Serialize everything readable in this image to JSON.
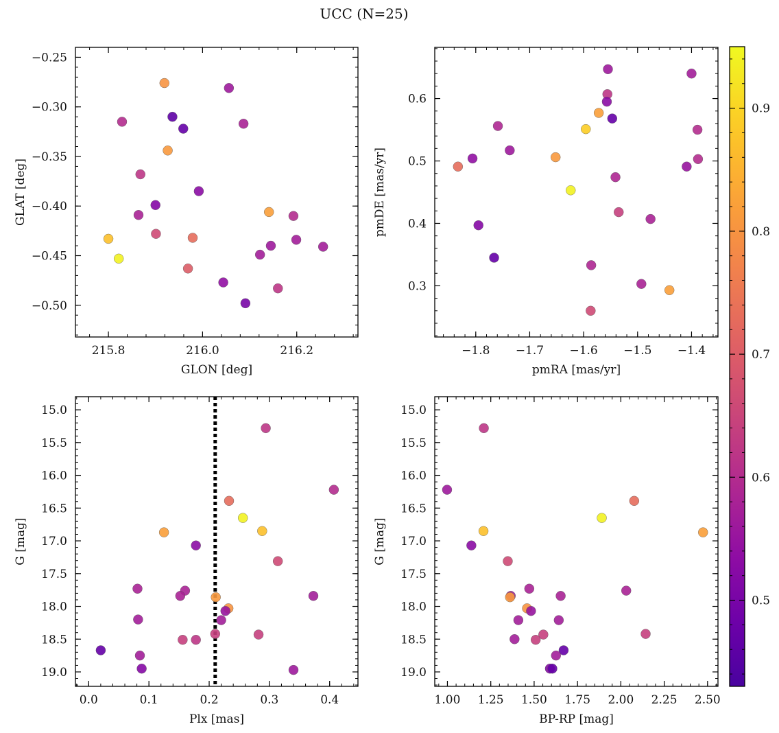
{
  "figure": {
    "title": "UCC (N=25)"
  },
  "colorbar": {
    "colormap": "plasma",
    "range": [
      0.43,
      0.95
    ],
    "ticks": [
      0.5,
      0.6,
      0.7,
      0.8,
      0.9
    ],
    "tick_labels": [
      "0.5",
      "0.6",
      "0.7",
      "0.8",
      "0.9"
    ]
  },
  "chart_data": [
    {
      "type": "scatter",
      "xlabel": "GLON [deg]",
      "ylabel": "GLAT [deg]",
      "xlim": [
        215.73,
        216.33
      ],
      "ylim": [
        -0.532,
        -0.24
      ],
      "y_inverted": false,
      "xticks": [
        215.8,
        216.0,
        216.2
      ],
      "xtick_labels": [
        "215.8",
        "216.0",
        "216.2"
      ],
      "xminor_step": 0.04,
      "yticks": [
        -0.5,
        -0.45,
        -0.4,
        -0.35,
        -0.3,
        -0.25
      ],
      "ytick_labels": [
        "−0.50",
        "−0.45",
        "−0.40",
        "−0.35",
        "−0.30",
        "−0.25"
      ],
      "yminor_step": 0.01,
      "points": [
        {
          "x": 215.919,
          "y": -0.276,
          "c": 0.8
        },
        {
          "x": 216.056,
          "y": -0.281,
          "c": 0.56
        },
        {
          "x": 215.936,
          "y": -0.31,
          "c": 0.46
        },
        {
          "x": 215.829,
          "y": -0.315,
          "c": 0.6
        },
        {
          "x": 215.959,
          "y": -0.322,
          "c": 0.47
        },
        {
          "x": 216.087,
          "y": -0.317,
          "c": 0.58
        },
        {
          "x": 215.926,
          "y": -0.344,
          "c": 0.81
        },
        {
          "x": 215.868,
          "y": -0.368,
          "c": 0.62
        },
        {
          "x": 215.992,
          "y": -0.385,
          "c": 0.53
        },
        {
          "x": 215.9,
          "y": -0.399,
          "c": 0.52
        },
        {
          "x": 216.141,
          "y": -0.406,
          "c": 0.82
        },
        {
          "x": 215.864,
          "y": -0.409,
          "c": 0.58
        },
        {
          "x": 216.193,
          "y": -0.41,
          "c": 0.6
        },
        {
          "x": 215.901,
          "y": -0.428,
          "c": 0.66
        },
        {
          "x": 215.979,
          "y": -0.432,
          "c": 0.73
        },
        {
          "x": 215.8,
          "y": -0.433,
          "c": 0.87
        },
        {
          "x": 216.199,
          "y": -0.434,
          "c": 0.57
        },
        {
          "x": 216.145,
          "y": -0.44,
          "c": 0.56
        },
        {
          "x": 216.256,
          "y": -0.441,
          "c": 0.57
        },
        {
          "x": 216.122,
          "y": -0.449,
          "c": 0.57
        },
        {
          "x": 215.822,
          "y": -0.453,
          "c": 0.94
        },
        {
          "x": 215.969,
          "y": -0.463,
          "c": 0.7
        },
        {
          "x": 216.044,
          "y": -0.477,
          "c": 0.54
        },
        {
          "x": 216.16,
          "y": -0.483,
          "c": 0.62
        },
        {
          "x": 216.091,
          "y": -0.498,
          "c": 0.5
        }
      ]
    },
    {
      "type": "scatter",
      "xlabel": "pmRA [mas/yr]",
      "ylabel": "pmDE [mas/yr]",
      "xlim": [
        -1.876,
        -1.351
      ],
      "ylim": [
        0.218,
        0.682
      ],
      "y_inverted": false,
      "xticks": [
        -1.8,
        -1.7,
        -1.6,
        -1.5,
        -1.4
      ],
      "xtick_labels": [
        "−1.8",
        "−1.7",
        "−1.6",
        "−1.5",
        "−1.4"
      ],
      "xminor_step": 0.02,
      "yticks": [
        0.3,
        0.4,
        0.5,
        0.6
      ],
      "ytick_labels": [
        "0.3",
        "0.4",
        "0.5",
        "0.6"
      ],
      "yminor_step": 0.02,
      "points": [
        {
          "x": -1.555,
          "y": 0.647,
          "c": 0.56
        },
        {
          "x": -1.4,
          "y": 0.64,
          "c": 0.57
        },
        {
          "x": -1.556,
          "y": 0.607,
          "c": 0.62
        },
        {
          "x": -1.557,
          "y": 0.595,
          "c": 0.53
        },
        {
          "x": -1.572,
          "y": 0.577,
          "c": 0.82
        },
        {
          "x": -1.547,
          "y": 0.568,
          "c": 0.47
        },
        {
          "x": -1.759,
          "y": 0.556,
          "c": 0.59
        },
        {
          "x": -1.596,
          "y": 0.551,
          "c": 0.89
        },
        {
          "x": -1.389,
          "y": 0.55,
          "c": 0.6
        },
        {
          "x": -1.737,
          "y": 0.517,
          "c": 0.56
        },
        {
          "x": -1.652,
          "y": 0.506,
          "c": 0.81
        },
        {
          "x": -1.806,
          "y": 0.504,
          "c": 0.54
        },
        {
          "x": -1.388,
          "y": 0.503,
          "c": 0.6
        },
        {
          "x": -1.833,
          "y": 0.491,
          "c": 0.73
        },
        {
          "x": -1.409,
          "y": 0.491,
          "c": 0.55
        },
        {
          "x": -1.541,
          "y": 0.474,
          "c": 0.59
        },
        {
          "x": -1.624,
          "y": 0.453,
          "c": 0.94
        },
        {
          "x": -1.535,
          "y": 0.418,
          "c": 0.64
        },
        {
          "x": -1.476,
          "y": 0.407,
          "c": 0.58
        },
        {
          "x": -1.795,
          "y": 0.397,
          "c": 0.52
        },
        {
          "x": -1.766,
          "y": 0.345,
          "c": 0.47
        },
        {
          "x": -1.586,
          "y": 0.333,
          "c": 0.59
        },
        {
          "x": -1.493,
          "y": 0.303,
          "c": 0.58
        },
        {
          "x": -1.441,
          "y": 0.293,
          "c": 0.82
        },
        {
          "x": -1.587,
          "y": 0.26,
          "c": 0.66
        }
      ]
    },
    {
      "type": "scatter",
      "xlabel": "Plx [mas]",
      "ylabel": "G [mag]",
      "xlim": [
        -0.022,
        0.447
      ],
      "ylim": [
        14.8,
        19.22
      ],
      "y_inverted": true,
      "xticks": [
        0.0,
        0.1,
        0.2,
        0.3,
        0.4
      ],
      "xtick_labels": [
        "0.0",
        "0.1",
        "0.2",
        "0.3",
        "0.4"
      ],
      "xminor_step": 0.02,
      "yticks": [
        15.0,
        15.5,
        16.0,
        16.5,
        17.0,
        17.5,
        18.0,
        18.5,
        19.0
      ],
      "ytick_labels": [
        "15.0",
        "15.5",
        "16.0",
        "16.5",
        "17.0",
        "17.5",
        "18.0",
        "18.5",
        "19.0"
      ],
      "yminor_step": 0.1,
      "vline": {
        "x": 0.21,
        "style": "dotted",
        "color": "#000000"
      },
      "points": [
        {
          "x": 0.294,
          "y": 15.28,
          "c": 0.62
        },
        {
          "x": 0.407,
          "y": 16.22,
          "c": 0.6
        },
        {
          "x": 0.233,
          "y": 16.39,
          "c": 0.73
        },
        {
          "x": 0.256,
          "y": 16.65,
          "c": 0.94
        },
        {
          "x": 0.125,
          "y": 16.87,
          "c": 0.82
        },
        {
          "x": 0.288,
          "y": 16.85,
          "c": 0.87
        },
        {
          "x": 0.178,
          "y": 17.07,
          "c": 0.53
        },
        {
          "x": 0.314,
          "y": 17.31,
          "c": 0.66
        },
        {
          "x": 0.081,
          "y": 17.73,
          "c": 0.58
        },
        {
          "x": 0.16,
          "y": 17.76,
          "c": 0.58
        },
        {
          "x": 0.152,
          "y": 17.84,
          "c": 0.58
        },
        {
          "x": 0.373,
          "y": 17.84,
          "c": 0.57
        },
        {
          "x": 0.211,
          "y": 17.86,
          "c": 0.81
        },
        {
          "x": 0.232,
          "y": 18.03,
          "c": 0.8
        },
        {
          "x": 0.227,
          "y": 18.07,
          "c": 0.55
        },
        {
          "x": 0.22,
          "y": 18.21,
          "c": 0.57
        },
        {
          "x": 0.082,
          "y": 18.2,
          "c": 0.57
        },
        {
          "x": 0.21,
          "y": 18.42,
          "c": 0.64
        },
        {
          "x": 0.282,
          "y": 18.43,
          "c": 0.64
        },
        {
          "x": 0.156,
          "y": 18.51,
          "c": 0.64
        },
        {
          "x": 0.178,
          "y": 18.51,
          "c": 0.62
        },
        {
          "x": 0.02,
          "y": 18.67,
          "c": 0.47
        },
        {
          "x": 0.085,
          "y": 18.75,
          "c": 0.57
        },
        {
          "x": 0.088,
          "y": 18.95,
          "c": 0.52
        },
        {
          "x": 0.34,
          "y": 18.97,
          "c": 0.56
        }
      ]
    },
    {
      "type": "scatter",
      "xlabel": "BP-RP [mag]",
      "ylabel": "G [mag]",
      "xlim": [
        0.927,
        2.56
      ],
      "ylim": [
        14.8,
        19.22
      ],
      "y_inverted": true,
      "xticks": [
        1.0,
        1.25,
        1.5,
        1.75,
        2.0,
        2.25,
        2.5
      ],
      "xtick_labels": [
        "1.00",
        "1.25",
        "1.50",
        "1.75",
        "2.00",
        "2.25",
        "2.50"
      ],
      "xminor_step": 0.05,
      "yticks": [
        15.0,
        15.5,
        16.0,
        16.5,
        17.0,
        17.5,
        18.0,
        18.5,
        19.0
      ],
      "ytick_labels": [
        "15.0",
        "15.5",
        "16.0",
        "16.5",
        "17.0",
        "17.5",
        "18.0",
        "18.5",
        "19.0"
      ],
      "yminor_step": 0.1,
      "points": [
        {
          "x": 1.21,
          "y": 15.28,
          "c": 0.62
        },
        {
          "x": 0.998,
          "y": 16.22,
          "c": 0.56
        },
        {
          "x": 2.077,
          "y": 16.39,
          "c": 0.73
        },
        {
          "x": 1.89,
          "y": 16.65,
          "c": 0.94
        },
        {
          "x": 2.474,
          "y": 16.87,
          "c": 0.82
        },
        {
          "x": 1.208,
          "y": 16.85,
          "c": 0.87
        },
        {
          "x": 1.138,
          "y": 17.07,
          "c": 0.53
        },
        {
          "x": 1.348,
          "y": 17.31,
          "c": 0.66
        },
        {
          "x": 1.472,
          "y": 17.73,
          "c": 0.58
        },
        {
          "x": 2.031,
          "y": 17.76,
          "c": 0.58
        },
        {
          "x": 1.365,
          "y": 17.84,
          "c": 0.57
        },
        {
          "x": 1.653,
          "y": 17.84,
          "c": 0.58
        },
        {
          "x": 1.361,
          "y": 17.86,
          "c": 0.81
        },
        {
          "x": 1.459,
          "y": 18.03,
          "c": 0.8
        },
        {
          "x": 1.482,
          "y": 18.07,
          "c": 0.55
        },
        {
          "x": 1.409,
          "y": 18.21,
          "c": 0.57
        },
        {
          "x": 1.642,
          "y": 18.21,
          "c": 0.57
        },
        {
          "x": 2.143,
          "y": 18.42,
          "c": 0.64
        },
        {
          "x": 1.553,
          "y": 18.43,
          "c": 0.64
        },
        {
          "x": 1.387,
          "y": 18.5,
          "c": 0.57
        },
        {
          "x": 1.509,
          "y": 18.51,
          "c": 0.64
        },
        {
          "x": 1.67,
          "y": 18.67,
          "c": 0.47
        },
        {
          "x": 1.626,
          "y": 18.75,
          "c": 0.57
        },
        {
          "x": 1.591,
          "y": 18.95,
          "c": 0.52
        },
        {
          "x": 1.605,
          "y": 18.95,
          "c": 0.47
        }
      ]
    }
  ]
}
